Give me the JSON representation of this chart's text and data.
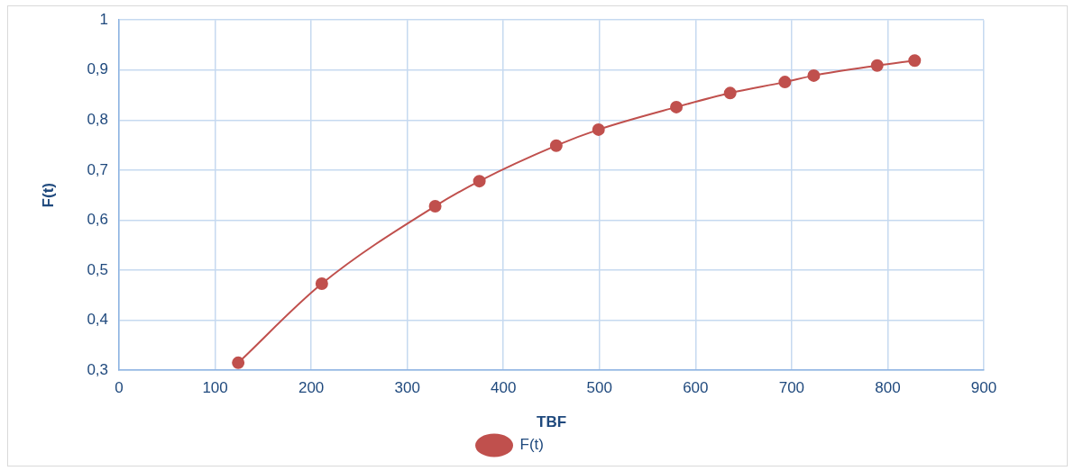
{
  "chart_data": {
    "type": "line",
    "xlabel": "TBF",
    "ylabel": "F(t)",
    "x": [
      124,
      211,
      329,
      375,
      455,
      499,
      580,
      636,
      693,
      723,
      789,
      828
    ],
    "series": [
      {
        "name": "F(t)",
        "color": "#c0504d",
        "values": [
          0.315,
          0.473,
          0.628,
          0.678,
          0.749,
          0.781,
          0.826,
          0.854,
          0.876,
          0.889,
          0.909,
          0.919
        ]
      }
    ],
    "xlim": [
      0,
      900
    ],
    "xticks": [
      0,
      100,
      200,
      300,
      400,
      500,
      600,
      700,
      800,
      900
    ],
    "ylim": [
      0.3,
      1
    ],
    "yticks": [
      {
        "value": 0.3,
        "label": "0,3"
      },
      {
        "value": 0.4,
        "label": "0,4"
      },
      {
        "value": 0.5,
        "label": "0,5"
      },
      {
        "value": 0.6,
        "label": "0,6"
      },
      {
        "value": 0.7,
        "label": "0,7"
      },
      {
        "value": 0.8,
        "label": "0,8"
      },
      {
        "value": 0.9,
        "label": "0,9"
      },
      {
        "value": 1,
        "label": "1"
      }
    ],
    "grid": true,
    "legend": "bottom",
    "marker": "circle",
    "line_style": "solid"
  }
}
